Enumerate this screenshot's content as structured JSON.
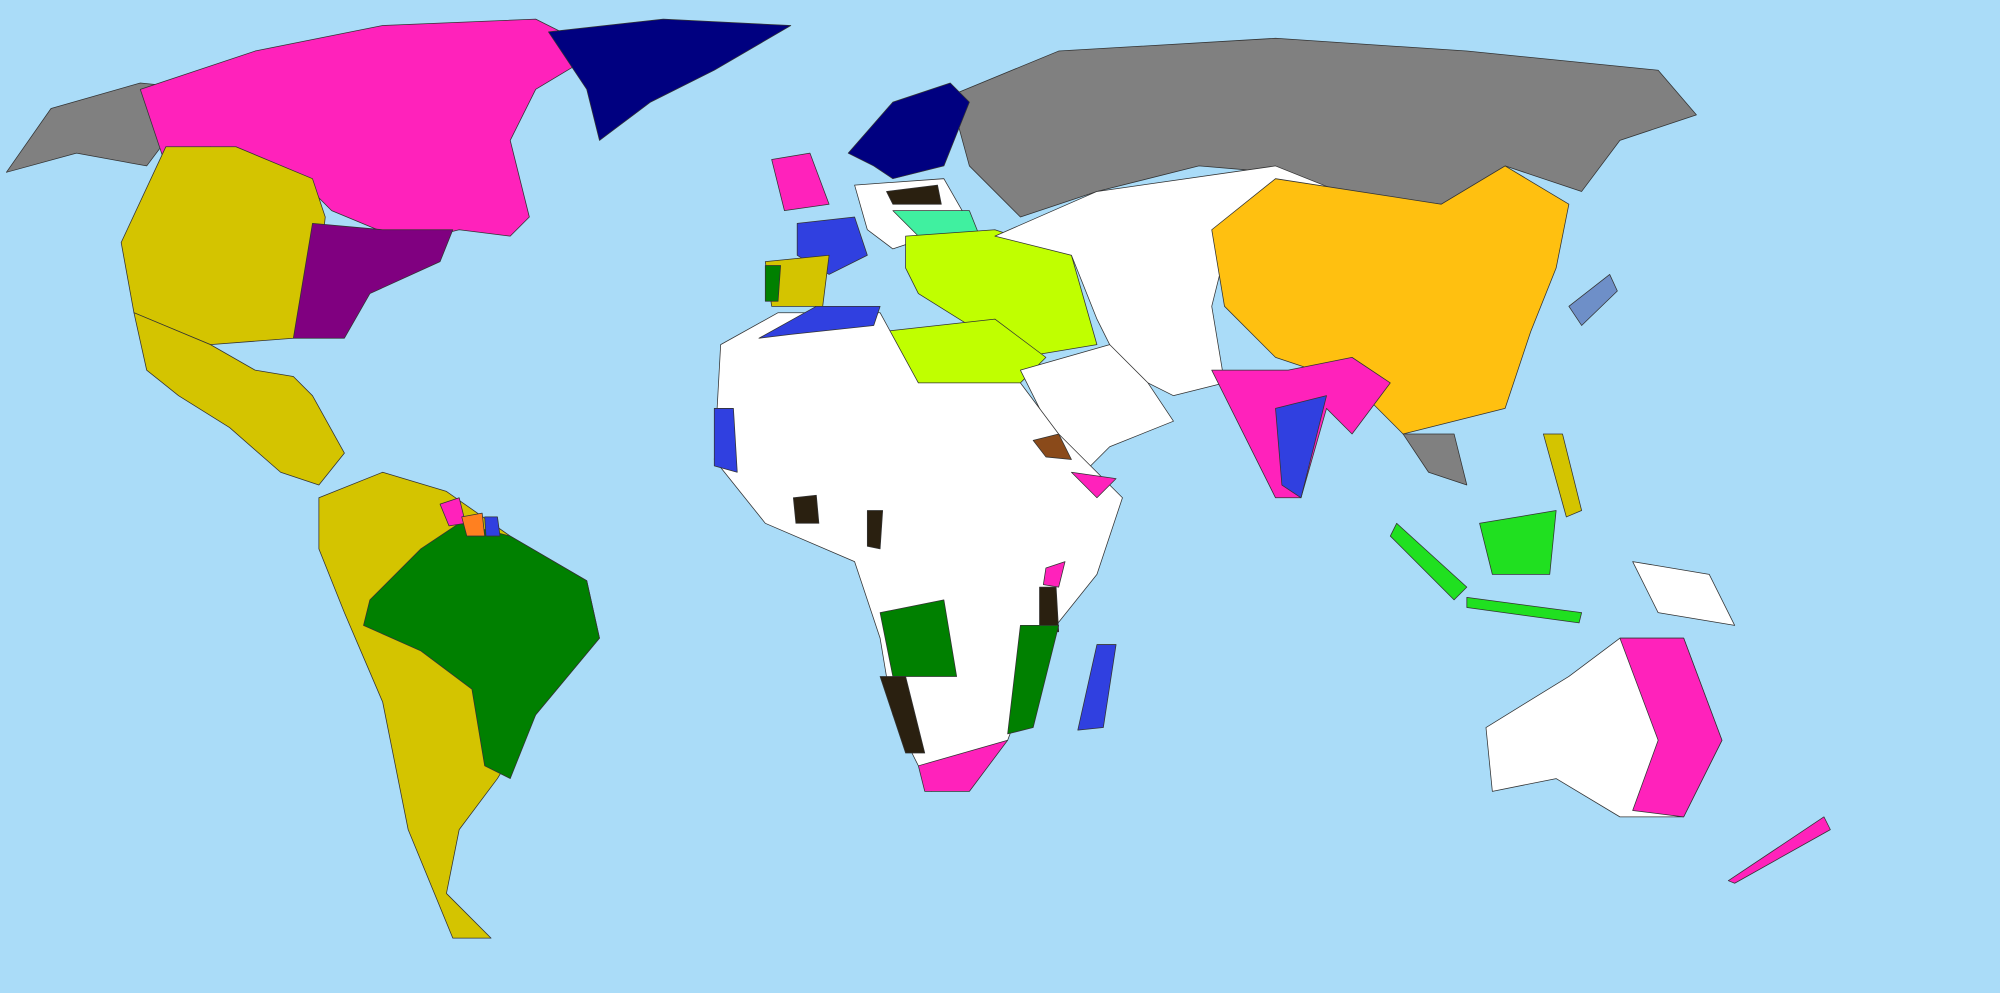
{
  "map": {
    "type": "world political map (colonial empires)",
    "colors": {
      "ocean": "#aadcf8",
      "unclaimed": "#ffffff",
      "russia_gray": "#808080",
      "british_pink": "#ff22bb",
      "danish_navy": "#000080",
      "us_purple": "#800080",
      "spanish_olive": "#d4c400",
      "portuguese_green": "#008000",
      "french_blue": "#3040e0",
      "ottoman_lime": "#c0ff00",
      "chinese_orange": "#ffc010",
      "dutch_green": "#20e020",
      "austrian_mint": "#40f0a0",
      "german_brown": "#2a2010",
      "italian_brown": "#8a4a1a",
      "japan_steel": "#6e8fc8",
      "belgian_orange": "#ff8020"
    }
  }
}
